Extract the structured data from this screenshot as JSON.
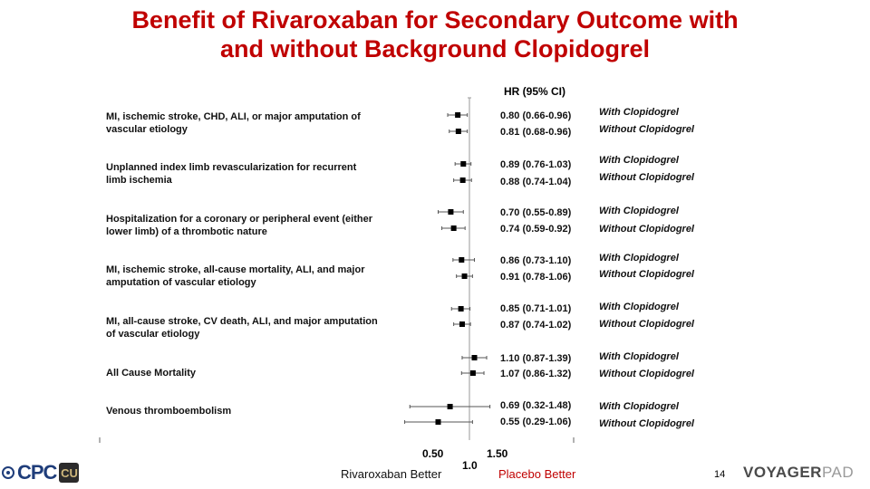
{
  "title_lines": [
    "Benefit of Rivaroxaban for Secondary Outcome with",
    "and without Background Clopidogrel"
  ],
  "hr_header": "HR (95% CI)",
  "outcomes": [
    "MI, ischemic stroke, CHD, ALI, or major amputation of vascular etiology",
    "Unplanned index limb revascularization for recurrent limb ischemia",
    "Hospitalization for a coronary or peripheral event (either lower limb) of a thrombotic nature",
    "MI, ischemic stroke, all-cause mortality, ALI, and major amputation of vascular etiology",
    "MI, all-cause stroke, CV death, ALI, and major amputation of vascular etiology",
    "All Cause Mortality",
    "Venous thromboembolism"
  ],
  "ci_text": [
    [
      "0.80 (0.66-0.96)",
      "0.81 (0.68-0.96)"
    ],
    [
      "0.89 (0.76-1.03)",
      "0.88 (0.74-1.04)"
    ],
    [
      "0.70 (0.55-0.89)",
      "0.74 (0.59-0.92)"
    ],
    [
      "0.86 (0.73-1.10)",
      "0.91 (0.78-1.06)"
    ],
    [
      "0.85 (0.71-1.01)",
      "0.87 (0.74-1.02)"
    ],
    [
      "1.10 (0.87-1.39)",
      "1.07 (0.86-1.32)"
    ],
    [
      "0.69 (0.32-1.48)",
      "0.55 (0.29-1.06)"
    ]
  ],
  "groups": [
    "With Clopidogrel",
    "Without Clopidogrel"
  ],
  "chart_data": {
    "type": "forest",
    "x_scale": "log",
    "xlim": [
      0.25,
      2.0
    ],
    "reference_line": 1.0,
    "tick_labels": [
      "0.50",
      "1.0",
      "1.50"
    ],
    "tick_values": [
      0.5,
      1.0,
      1.5
    ],
    "series": [
      {
        "name": "With Clopidogrel",
        "hr": [
          0.8,
          0.89,
          0.7,
          0.86,
          0.85,
          1.1,
          0.69
        ],
        "lower": [
          0.66,
          0.76,
          0.55,
          0.73,
          0.71,
          0.87,
          0.32
        ],
        "upper": [
          0.96,
          1.03,
          0.89,
          1.1,
          1.01,
          1.39,
          1.48
        ]
      },
      {
        "name": "Without Clopidogrel",
        "hr": [
          0.81,
          0.88,
          0.74,
          0.91,
          0.87,
          1.07,
          0.55
        ],
        "lower": [
          0.68,
          0.74,
          0.59,
          0.78,
          0.74,
          0.86,
          0.29
        ],
        "upper": [
          0.96,
          1.04,
          0.92,
          1.06,
          1.02,
          1.32,
          1.06
        ]
      }
    ]
  },
  "bottom_left_label": "Rivaroxaban Better",
  "bottom_right_label": "Placebo Better",
  "page_number": "14",
  "logo_left_text": "CPC",
  "logo_left_mark": "CU",
  "logo_right_text_a": "VOYAGER",
  "logo_right_text_b": "PAD",
  "colors": {
    "title": "#c00000",
    "marker": "#000000"
  }
}
